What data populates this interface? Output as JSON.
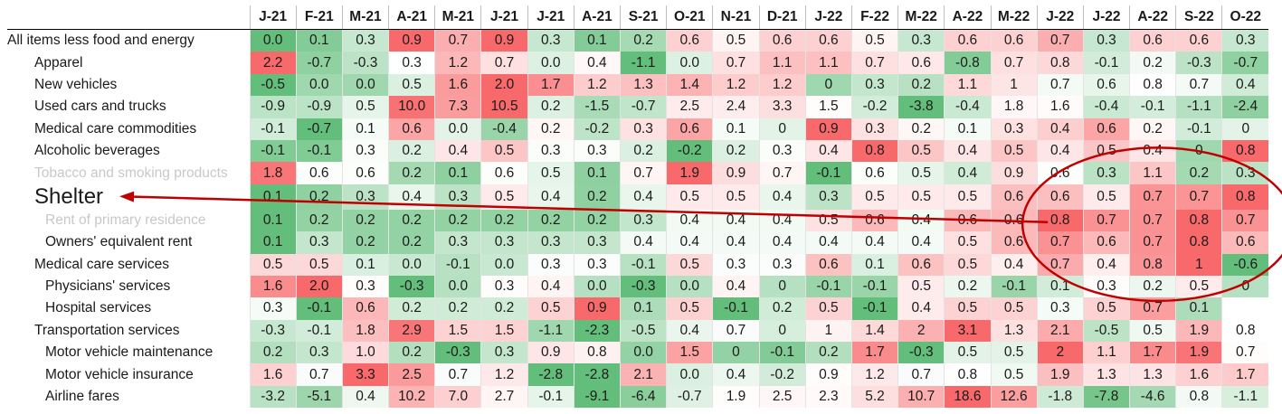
{
  "chart_data": {
    "type": "heatmap",
    "columns": [
      "J-21",
      "F-21",
      "M-21",
      "A-21",
      "M-21",
      "J-21",
      "J-21",
      "A-21",
      "S-21",
      "O-21",
      "N-21",
      "D-21",
      "J-22",
      "F-22",
      "M-22",
      "A-22",
      "M-22",
      "J-22",
      "J-22",
      "A-22",
      "S-22",
      "O-22"
    ],
    "rows": [
      {
        "label": "All items less food and energy",
        "level": 0,
        "values": [
          "0.0",
          "0.1",
          "0.3",
          "0.9",
          "0.7",
          "0.9",
          "0.3",
          "0.1",
          "0.2",
          "0.6",
          "0.5",
          "0.6",
          "0.6",
          "0.5",
          "0.3",
          "0.6",
          "0.6",
          "0.7",
          "0.3",
          "0.6",
          "0.6",
          "0.3"
        ]
      },
      {
        "label": "Apparel",
        "level": 1,
        "values": [
          "2.2",
          "-0.7",
          "-0.3",
          "0.3",
          "1.2",
          "0.7",
          "0.0",
          "0.4",
          "-1.1",
          "0.0",
          "0.7",
          "1.1",
          "1.1",
          "0.7",
          "0.6",
          "-0.8",
          "0.7",
          "0.8",
          "-0.1",
          "0.2",
          "-0.3",
          "-0.7"
        ]
      },
      {
        "label": "New vehicles",
        "level": 1,
        "values": [
          "-0.5",
          "0.0",
          "0.0",
          "0.5",
          "1.6",
          "2.0",
          "1.7",
          "1.2",
          "1.3",
          "1.4",
          "1.2",
          "1.2",
          "0",
          "0.3",
          "0.2",
          "1.1",
          "1",
          "0.7",
          "0.6",
          "0.8",
          "0.7",
          "0.4"
        ]
      },
      {
        "label": "Used cars and trucks",
        "level": 1,
        "values": [
          "-0.9",
          "-0.9",
          "0.5",
          "10.0",
          "7.3",
          "10.5",
          "0.2",
          "-1.5",
          "-0.7",
          "2.5",
          "2.4",
          "3.3",
          "1.5",
          "-0.2",
          "-3.8",
          "-0.4",
          "1.8",
          "1.6",
          "-0.4",
          "-0.1",
          "-1.1",
          "-2.4"
        ]
      },
      {
        "label": "Medical care commodities",
        "level": 1,
        "values": [
          "-0.1",
          "-0.7",
          "0.1",
          "0.6",
          "0.0",
          "-0.4",
          "0.2",
          "-0.2",
          "0.3",
          "0.6",
          "0.1",
          "0",
          "0.9",
          "0.3",
          "0.2",
          "0.1",
          "0.3",
          "0.4",
          "0.6",
          "0.2",
          "-0.1",
          "0"
        ]
      },
      {
        "label": "Alcoholic beverages",
        "level": 1,
        "values": [
          "-0.1",
          "-0.1",
          "0.3",
          "0.2",
          "0.4",
          "0.5",
          "0.3",
          "0.3",
          "0.2",
          "-0.2",
          "0.2",
          "0.3",
          "0.4",
          "0.8",
          "0.5",
          "0.4",
          "0.5",
          "0.4",
          "0.5",
          "0.4",
          "0",
          "0.8"
        ]
      },
      {
        "label": "Tobacco and smoking products",
        "level": 1,
        "faded": true,
        "values": [
          "1.8",
          "0.6",
          "0.6",
          "0.2",
          "0.1",
          "0.6",
          "0.5",
          "0.1",
          "0.7",
          "1.9",
          "0.9",
          "0.7",
          "-0.1",
          "0.6",
          "0.5",
          "0.4",
          "0.9",
          "0.6",
          "0.3",
          "1.1",
          "0.2",
          "0.3"
        ]
      },
      {
        "label": "Shelter",
        "level": 1,
        "big": true,
        "values": [
          "0.1",
          "0.2",
          "0.3",
          "0.4",
          "0.3",
          "0.5",
          "0.4",
          "0.2",
          "0.4",
          "0.5",
          "0.5",
          "0.4",
          "0.3",
          "0.5",
          "0.5",
          "0.5",
          "0.6",
          "0.6",
          "0.5",
          "0.7",
          "0.7",
          "0.8"
        ]
      },
      {
        "label": "Rent of primary residence",
        "level": 2,
        "faded": true,
        "values": [
          "0.1",
          "0.2",
          "0.2",
          "0.2",
          "0.2",
          "0.2",
          "0.2",
          "0.2",
          "0.3",
          "0.4",
          "0.4",
          "0.4",
          "0.5",
          "0.6",
          "0.4",
          "0.6",
          "0.6",
          "0.8",
          "0.7",
          "0.7",
          "0.8",
          "0.7"
        ]
      },
      {
        "label": "Owners' equivalent rent",
        "level": 2,
        "values": [
          "0.1",
          "0.3",
          "0.2",
          "0.2",
          "0.3",
          "0.3",
          "0.3",
          "0.3",
          "0.4",
          "0.4",
          "0.4",
          "0.4",
          "0.4",
          "0.4",
          "0.4",
          "0.5",
          "0.6",
          "0.7",
          "0.6",
          "0.7",
          "0.8",
          "0.6"
        ]
      },
      {
        "label": "Medical care services",
        "level": 1,
        "values": [
          "0.5",
          "0.5",
          "0.1",
          "0.0",
          "-0.1",
          "0.0",
          "0.3",
          "0.3",
          "-0.1",
          "0.5",
          "0.3",
          "0.3",
          "0.6",
          "0.1",
          "0.6",
          "0.5",
          "0.4",
          "0.7",
          "0.4",
          "0.8",
          "1",
          "-0.6"
        ]
      },
      {
        "label": "Physicians' services",
        "level": 2,
        "values": [
          "1.6",
          "2.0",
          "0.3",
          "-0.3",
          "0.0",
          "0.3",
          "0.4",
          "0.0",
          "-0.3",
          "0.0",
          "0.4",
          "0",
          "-0.1",
          "-0.1",
          "0.5",
          "0.2",
          "-0.1",
          "0.1",
          "0.3",
          "0.2",
          "0.5",
          "0"
        ]
      },
      {
        "label": "Hospital services",
        "level": 2,
        "values": [
          "0.3",
          "-0.1",
          "0.6",
          "0.2",
          "0.2",
          "0.2",
          "0.5",
          "0.9",
          "0.1",
          "0.5",
          "-0.1",
          "0.2",
          "0.5",
          "-0.1",
          "0.4",
          "0.5",
          "0.5",
          "0.3",
          "0.5",
          "0.7",
          "0.1",
          ""
        ]
      },
      {
        "label": "Transportation services",
        "level": 1,
        "values": [
          "-0.3",
          "-0.1",
          "1.8",
          "2.9",
          "1.5",
          "1.5",
          "-1.1",
          "-2.3",
          "-0.5",
          "0.4",
          "0.7",
          "0",
          "1",
          "1.4",
          "2",
          "3.1",
          "1.3",
          "2.1",
          "-0.5",
          "0.5",
          "1.9",
          "0.8"
        ]
      },
      {
        "label": "Motor vehicle maintenance",
        "level": 2,
        "values": [
          "0.2",
          "0.3",
          "1.0",
          "0.2",
          "-0.3",
          "0.3",
          "0.9",
          "0.8",
          "0.0",
          "1.5",
          "0",
          "-0.1",
          "0.2",
          "1.7",
          "-0.3",
          "0.5",
          "0.5",
          "2",
          "1.1",
          "1.7",
          "1.9",
          "0.7"
        ]
      },
      {
        "label": "Motor vehicle insurance",
        "level": 2,
        "values": [
          "1.6",
          "0.7",
          "3.3",
          "2.5",
          "0.7",
          "1.2",
          "-2.8",
          "-2.8",
          "2.1",
          "0.0",
          "0.4",
          "-0.2",
          "0.9",
          "1.2",
          "0.7",
          "0.8",
          "0.5",
          "1.9",
          "1.3",
          "1.3",
          "1.6",
          "1.7"
        ]
      },
      {
        "label": "Airline fares",
        "level": 2,
        "values": [
          "-3.2",
          "-5.1",
          "0.4",
          "10.2",
          "7.0",
          "2.7",
          "-0.1",
          "-9.1",
          "-6.4",
          "-0.7",
          "1.9",
          "2.5",
          "2.3",
          "5.2",
          "10.7",
          "18.6",
          "12.6",
          "-1.8",
          "-7.8",
          "-4.6",
          "0.8",
          "-1.1"
        ]
      }
    ],
    "color_scale": {
      "negative": "#63be7b",
      "middle": "#ffffff",
      "positive": "#f8696b"
    },
    "annotation": {
      "type": "arrow-and-ellipse",
      "color": "#c00000",
      "points_to_row": "Shelter",
      "ellipse_rows": [
        "Tobacco and smoking products",
        "Medical care services"
      ],
      "ellipse_cols": [
        "J-22",
        "O-22"
      ]
    }
  }
}
